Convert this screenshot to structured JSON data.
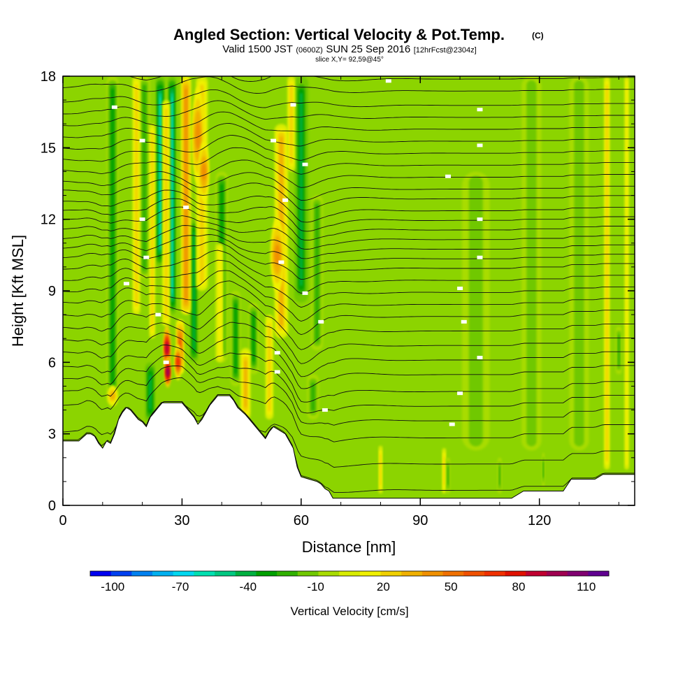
{
  "title": {
    "main": "Angled Section: Vertical Velocity & Pot.Temp.",
    "copyright": "(C)",
    "valid_prefix": "Valid 1500 JST",
    "valid_utc": "(0600Z)",
    "valid_date": "SUN 25 Sep 2016",
    "forecast": "[12hrFcst@2304z]",
    "slice": "slice X,Y= 92,59@45°"
  },
  "colorbar": {
    "title": "Vertical Velocity [cm/s]",
    "labels": [
      "-100",
      "-70",
      "-40",
      "-10",
      "20",
      "50",
      "80",
      "110"
    ],
    "label_values": [
      -100,
      -70,
      -40,
      -10,
      20,
      50,
      80,
      110
    ],
    "colors": [
      "#0000f0",
      "#0040f0",
      "#0080f0",
      "#00b0f0",
      "#00d8f0",
      "#00e0b0",
      "#00c880",
      "#00b040",
      "#00a000",
      "#30b000",
      "#70c800",
      "#a8dc00",
      "#d8ec00",
      "#f0f000",
      "#f0d000",
      "#f0b000",
      "#f09000",
      "#f07000",
      "#f05000",
      "#f03000",
      "#e01000",
      "#c00030",
      "#a00050",
      "#800070",
      "#600090"
    ],
    "bounds": [
      -110,
      120
    ]
  },
  "chart_data": {
    "type": "heatmap",
    "title": "Angled Section: Vertical Velocity & Pot.Temp.",
    "xlabel": "Distance [nm]",
    "ylabel": "Height [Kft MSL]",
    "xlim": [
      0,
      144
    ],
    "ylim": [
      0,
      18
    ],
    "x_ticks": [
      0,
      30,
      60,
      90,
      120
    ],
    "y_ticks": [
      0,
      3,
      6,
      9,
      12,
      15,
      18
    ],
    "background_green": "#8cd400",
    "terrain_profile": [
      [
        0,
        2.7
      ],
      [
        4,
        2.7
      ],
      [
        6,
        3.0
      ],
      [
        7,
        3.0
      ],
      [
        8,
        2.9
      ],
      [
        9,
        2.6
      ],
      [
        10,
        2.4
      ],
      [
        11,
        2.7
      ],
      [
        12,
        2.6
      ],
      [
        13,
        3.0
      ],
      [
        14,
        3.6
      ],
      [
        15,
        3.9
      ],
      [
        16,
        4.1
      ],
      [
        17,
        4.0
      ],
      [
        18,
        3.8
      ],
      [
        19,
        3.6
      ],
      [
        20,
        3.5
      ],
      [
        21,
        3.3
      ],
      [
        22,
        3.7
      ],
      [
        23,
        3.9
      ],
      [
        24,
        4.1
      ],
      [
        25,
        4.3
      ],
      [
        30,
        4.3
      ],
      [
        31,
        4.1
      ],
      [
        33,
        3.7
      ],
      [
        34,
        3.4
      ],
      [
        35,
        3.6
      ],
      [
        36,
        3.9
      ],
      [
        37,
        4.2
      ],
      [
        38,
        4.4
      ],
      [
        39,
        4.6
      ],
      [
        42,
        4.6
      ],
      [
        43,
        4.4
      ],
      [
        44,
        4.1
      ],
      [
        46,
        3.8
      ],
      [
        47,
        3.6
      ],
      [
        48,
        3.4
      ],
      [
        49,
        3.2
      ],
      [
        50,
        3.0
      ],
      [
        51,
        2.8
      ],
      [
        52,
        3.1
      ],
      [
        53,
        3.3
      ],
      [
        54,
        3.2
      ],
      [
        56,
        3.0
      ],
      [
        58,
        2.4
      ],
      [
        59,
        1.6
      ],
      [
        60,
        1.2
      ],
      [
        62,
        1.1
      ],
      [
        64,
        1.0
      ],
      [
        65,
        0.9
      ],
      [
        66,
        0.7
      ],
      [
        67,
        0.6
      ],
      [
        68,
        0.3
      ],
      [
        113,
        0.3
      ],
      [
        116,
        0.6
      ],
      [
        126,
        0.6
      ],
      [
        128,
        1.1
      ],
      [
        134,
        1.1
      ],
      [
        136,
        1.3
      ],
      [
        144,
        1.3
      ]
    ],
    "streaks": [
      {
        "x": 12.5,
        "y0": 4.2,
        "y1": 18,
        "w": 3,
        "value": -30
      },
      {
        "x": 20.5,
        "y0": 9.5,
        "y1": 18,
        "w": 3,
        "value": -25
      },
      {
        "x": 22,
        "y0": 3.5,
        "y1": 6.0,
        "w": 2.5,
        "value": -40
      },
      {
        "x": 24.5,
        "y0": 10,
        "y1": 18,
        "w": 2.2,
        "value": -60
      },
      {
        "x": 27.5,
        "y0": 8,
        "y1": 18,
        "w": 2.0,
        "value": -55
      },
      {
        "x": 33,
        "y0": 6,
        "y1": 12,
        "w": 2.0,
        "value": -40
      },
      {
        "x": 40,
        "y0": 6,
        "y1": 14,
        "w": 3,
        "value": -30
      },
      {
        "x": 43.5,
        "y0": 5,
        "y1": 9,
        "w": 2.5,
        "value": -30
      },
      {
        "x": 60,
        "y0": 8.5,
        "y1": 18,
        "w": 3.5,
        "value": -45
      },
      {
        "x": 64,
        "y0": 6.5,
        "y1": 13,
        "w": 3,
        "value": -25
      },
      {
        "x": 48,
        "y0": 5.5,
        "y1": 8.5,
        "w": 2.5,
        "value": -30
      },
      {
        "x": 63,
        "y0": 3.6,
        "y1": 5.5,
        "w": 3,
        "value": -20
      },
      {
        "x": 18.5,
        "y0": 8,
        "y1": 18,
        "w": 2.0,
        "value": 25
      },
      {
        "x": 22.5,
        "y0": 7,
        "y1": 16,
        "w": 1.5,
        "value": 20
      },
      {
        "x": 26,
        "y0": 7.5,
        "y1": 17,
        "w": 2.0,
        "value": 25
      },
      {
        "x": 29.5,
        "y0": 5.5,
        "y1": 7.8,
        "w": 2.0,
        "value": 60
      },
      {
        "x": 31,
        "y0": 8,
        "y1": 18,
        "w": 2.5,
        "value": 40
      },
      {
        "x": 35,
        "y0": 9,
        "y1": 18,
        "w": 3,
        "value": 25
      },
      {
        "x": 46,
        "y0": 3.6,
        "y1": 6.6,
        "w": 2.5,
        "value": 35
      },
      {
        "x": 52,
        "y0": 3.6,
        "y1": 8,
        "w": 2.0,
        "value": 25
      },
      {
        "x": 55,
        "y0": 7,
        "y1": 16,
        "w": 3.5,
        "value": 35
      },
      {
        "x": 57.5,
        "y0": 14,
        "y1": 18,
        "w": 2.0,
        "value": 25
      },
      {
        "x": 39.5,
        "y0": 6,
        "y1": 11,
        "w": 2.0,
        "value": 15
      },
      {
        "x": 80,
        "y0": 0.5,
        "y1": 2.5,
        "w": 1.0,
        "value": 20
      },
      {
        "x": 96,
        "y0": 0.5,
        "y1": 2.4,
        "w": 1.0,
        "value": 20
      },
      {
        "x": 137,
        "y0": 1.5,
        "y1": 18,
        "w": 1.5,
        "value": 20
      },
      {
        "x": 142,
        "y0": 1.5,
        "y1": 18,
        "w": 1.2,
        "value": 15
      },
      {
        "x": 104,
        "y0": 2.3,
        "y1": 14,
        "w": 7,
        "value": -12
      },
      {
        "x": 118,
        "y0": 2.3,
        "y1": 18,
        "w": 5,
        "value": -12
      },
      {
        "x": 130,
        "y0": 2.3,
        "y1": 18,
        "w": 5,
        "value": -12
      },
      {
        "x": 110,
        "y0": 0.5,
        "y1": 2.0,
        "w": 1.0,
        "value": -25
      },
      {
        "x": 97,
        "y0": 0.5,
        "y1": 2.0,
        "w": 1.0,
        "value": -25
      },
      {
        "x": 121,
        "y0": 0.8,
        "y1": 2.2,
        "w": 0.6,
        "value": -20
      },
      {
        "x": 140,
        "y0": 5.5,
        "y1": 7.5,
        "w": 1.5,
        "value": -25
      }
    ],
    "blobs": [
      {
        "x": 26.2,
        "y": 6.6,
        "rx": 0.6,
        "ry": 0.9,
        "value": 90
      },
      {
        "x": 26.4,
        "y": 5.6,
        "rx": 0.5,
        "ry": 0.6,
        "value": 100
      },
      {
        "x": 29.0,
        "y": 6.0,
        "rx": 0.6,
        "ry": 0.7,
        "value": 70
      },
      {
        "x": 12.5,
        "y": 4.6,
        "rx": 1.0,
        "ry": 0.4,
        "value": 35
      },
      {
        "x": 54,
        "y": 10.5,
        "rx": 1.4,
        "ry": 1.5,
        "value": 45
      },
      {
        "x": 34,
        "y": 15.5,
        "rx": 1.2,
        "ry": 2.0,
        "value": 40
      },
      {
        "x": 35.5,
        "y": 14,
        "rx": 1.0,
        "ry": 1.2,
        "value": 45
      }
    ],
    "isentropes_y": [
      0.8,
      1.9,
      3.0,
      3.7,
      4.3,
      4.9,
      5.6,
      6.2,
      6.8,
      7.4,
      8.0,
      8.5,
      9.0,
      9.5,
      10.0,
      10.4,
      10.8,
      11.2,
      11.6,
      12.0,
      12.4,
      12.9,
      13.3,
      13.8,
      14.3,
      14.8,
      15.3,
      15.8,
      16.3,
      16.8,
      17.4,
      17.9
    ],
    "contour_label_positions": [
      [
        13,
        16.7
      ],
      [
        20,
        15.3
      ],
      [
        31,
        12.5
      ],
      [
        20,
        12.0
      ],
      [
        21,
        10.4
      ],
      [
        16,
        9.3
      ],
      [
        24,
        8.0
      ],
      [
        26,
        6.0
      ],
      [
        54,
        6.4
      ],
      [
        54,
        5.6
      ],
      [
        55,
        10.2
      ],
      [
        61,
        8.9
      ],
      [
        65,
        7.7
      ],
      [
        66,
        4.0
      ],
      [
        56,
        12.8
      ],
      [
        61,
        14.3
      ],
      [
        58,
        16.8
      ],
      [
        53,
        15.3
      ],
      [
        82,
        17.8
      ],
      [
        105,
        16.6
      ],
      [
        105,
        15.1
      ],
      [
        97,
        13.8
      ],
      [
        105,
        12.0
      ],
      [
        105,
        10.4
      ],
      [
        100,
        9.1
      ],
      [
        101,
        7.7
      ],
      [
        105,
        6.2
      ],
      [
        100,
        4.7
      ],
      [
        98,
        3.4
      ]
    ]
  }
}
